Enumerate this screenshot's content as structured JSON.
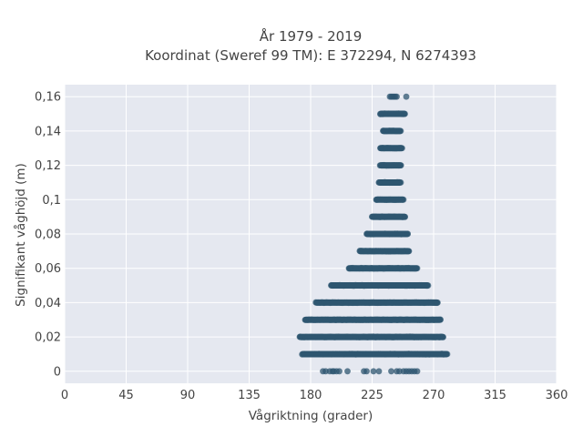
{
  "chart_data": {
    "type": "scatter",
    "title": [
      "År 1979 - 2019",
      "Koordinat (Sweref 99 TM): E 372294, N 6274393"
    ],
    "xlabel": "Vågriktning (grader)",
    "ylabel": "Signifikant våghöjd (m)",
    "xlim": [
      0,
      360
    ],
    "ylim": [
      -0.007,
      0.167
    ],
    "xticks": [
      0,
      45,
      90,
      135,
      180,
      225,
      270,
      315,
      360
    ],
    "xtick_labels": [
      "0",
      "45",
      "90",
      "135",
      "180",
      "225",
      "270",
      "315",
      "360"
    ],
    "yticks": [
      0,
      0.02,
      0.04,
      0.06,
      0.08,
      0.1,
      0.12,
      0.14,
      0.16
    ],
    "ytick_labels": [
      "0",
      "0,02",
      "0,04",
      "0,06",
      "0,08",
      "0,1",
      "0,12",
      "0,14",
      "0,16"
    ],
    "grid": true,
    "marker_color": "#2e5670",
    "background_color": "#e5e8f0",
    "grid_color": "#ffffff",
    "bands": [
      {
        "y": 0.0,
        "x_min": 189,
        "x_max": 258,
        "dense": false,
        "points": [
          189,
          191,
          194,
          196,
          197,
          199,
          201,
          207,
          219,
          221,
          226,
          230,
          239,
          243,
          245,
          248,
          250,
          252,
          254,
          256,
          258
        ]
      },
      {
        "y": 0.01,
        "x_min": 174,
        "x_max": 280,
        "dense": true
      },
      {
        "y": 0.02,
        "x_min": 172,
        "x_max": 277,
        "dense": true
      },
      {
        "y": 0.03,
        "x_min": 176,
        "x_max": 275,
        "dense": true
      },
      {
        "y": 0.04,
        "x_min": 184,
        "x_max": 273,
        "dense": true
      },
      {
        "y": 0.05,
        "x_min": 195,
        "x_max": 266,
        "dense": true
      },
      {
        "y": 0.06,
        "x_min": 208,
        "x_max": 258,
        "dense": true
      },
      {
        "y": 0.07,
        "x_min": 216,
        "x_max": 252,
        "dense": true
      },
      {
        "y": 0.08,
        "x_min": 221,
        "x_max": 251,
        "dense": true
      },
      {
        "y": 0.09,
        "x_min": 225,
        "x_max": 249,
        "dense": true
      },
      {
        "y": 0.1,
        "x_min": 228,
        "x_max": 248,
        "dense": true
      },
      {
        "y": 0.11,
        "x_min": 230,
        "x_max": 246,
        "dense": true
      },
      {
        "y": 0.12,
        "x_min": 231,
        "x_max": 246,
        "dense": true
      },
      {
        "y": 0.13,
        "x_min": 231,
        "x_max": 247,
        "dense": true
      },
      {
        "y": 0.14,
        "x_min": 233,
        "x_max": 246,
        "dense": true
      },
      {
        "y": 0.15,
        "x_min": 231,
        "x_max": 249,
        "dense": true
      },
      {
        "y": 0.16,
        "x_min": 238,
        "x_max": 250,
        "dense": false,
        "points": [
          238,
          239,
          240,
          241,
          242,
          243,
          250
        ]
      }
    ]
  }
}
